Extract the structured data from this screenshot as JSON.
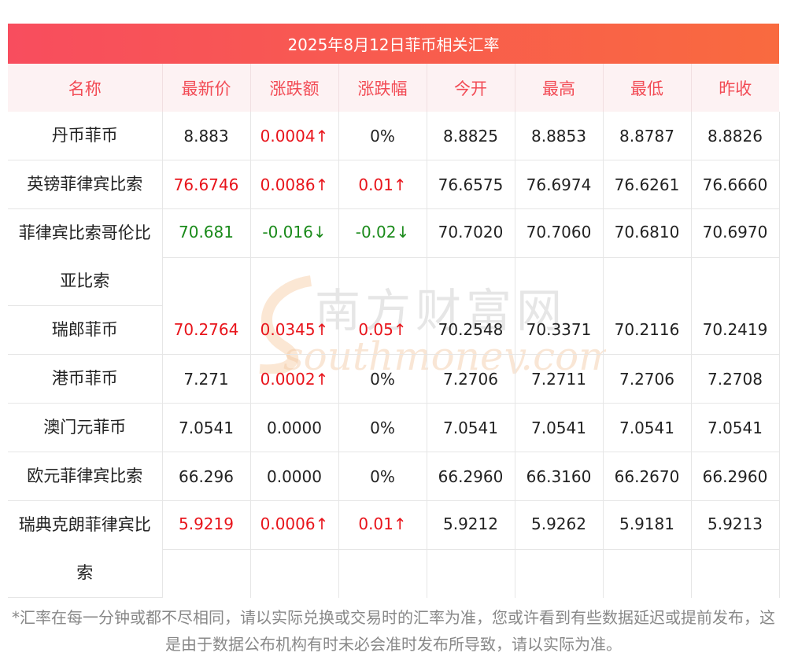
{
  "title": "2025年8月12日菲币相关汇率",
  "headers": [
    "名称",
    "最新价",
    "涨跌额",
    "涨跌幅",
    "今开",
    "最高",
    "最低",
    "昨收"
  ],
  "rows": [
    {
      "name": "丹币菲币",
      "latest": "8.883",
      "change": "0.0004↑",
      "pct": "0%",
      "open": "8.8825",
      "high": "8.8853",
      "low": "8.8787",
      "prev": "8.8826",
      "latest_dir": "",
      "change_dir": "up",
      "pct_dir": ""
    },
    {
      "name": "英镑菲律宾比索",
      "latest": "76.6746",
      "change": "0.0086↑",
      "pct": "0.01↑",
      "open": "76.6575",
      "high": "76.6974",
      "low": "76.6261",
      "prev": "76.6660",
      "latest_dir": "up",
      "change_dir": "up",
      "pct_dir": "up"
    },
    {
      "name": "菲律宾比索哥伦比亚比索",
      "latest": "70.681",
      "change": "-0.016↓",
      "pct": "-0.02↓",
      "open": "70.7020",
      "high": "70.7060",
      "low": "70.6810",
      "prev": "70.6970",
      "latest_dir": "down",
      "change_dir": "down",
      "pct_dir": "down"
    },
    {
      "name": "瑞郎菲币",
      "latest": "70.2764",
      "change": "0.0345↑",
      "pct": "0.05↑",
      "open": "70.2548",
      "high": "70.3371",
      "low": "70.2116",
      "prev": "70.2419",
      "latest_dir": "up",
      "change_dir": "up",
      "pct_dir": "up"
    },
    {
      "name": "港币菲币",
      "latest": "7.271",
      "change": "0.0002↑",
      "pct": "0%",
      "open": "7.2706",
      "high": "7.2711",
      "low": "7.2706",
      "prev": "7.2708",
      "latest_dir": "",
      "change_dir": "up",
      "pct_dir": ""
    },
    {
      "name": "澳门元菲币",
      "latest": "7.0541",
      "change": "0.0000",
      "pct": "0%",
      "open": "7.0541",
      "high": "7.0541",
      "low": "7.0541",
      "prev": "7.0541",
      "latest_dir": "",
      "change_dir": "",
      "pct_dir": ""
    },
    {
      "name": "欧元菲律宾比索",
      "latest": "66.296",
      "change": "0.0000",
      "pct": "0%",
      "open": "66.2960",
      "high": "66.3160",
      "low": "66.2670",
      "prev": "66.2960",
      "latest_dir": "",
      "change_dir": "",
      "pct_dir": ""
    },
    {
      "name": "瑞典克朗菲律宾比索",
      "latest": "5.9219",
      "change": "0.0006↑",
      "pct": "0.01↑",
      "open": "5.9212",
      "high": "5.9262",
      "low": "5.9181",
      "prev": "5.9213",
      "latest_dir": "up",
      "change_dir": "up",
      "pct_dir": "up"
    }
  ],
  "watermark": {
    "cn": "南方财富网",
    "en": "southmoney.com"
  },
  "note": "*汇率在每一分钟或都不尽相同，请以实际兑换或交易时的汇率为准，您或许看到有些数据延迟或提前发布，这是由于数据公布机构有时未必会准时发布所导致，请以实际为准。",
  "colors": {
    "accent": "#f84d5e",
    "up": "#e8141b",
    "down": "#1a8a1a",
    "header_text": "#f24b55"
  }
}
